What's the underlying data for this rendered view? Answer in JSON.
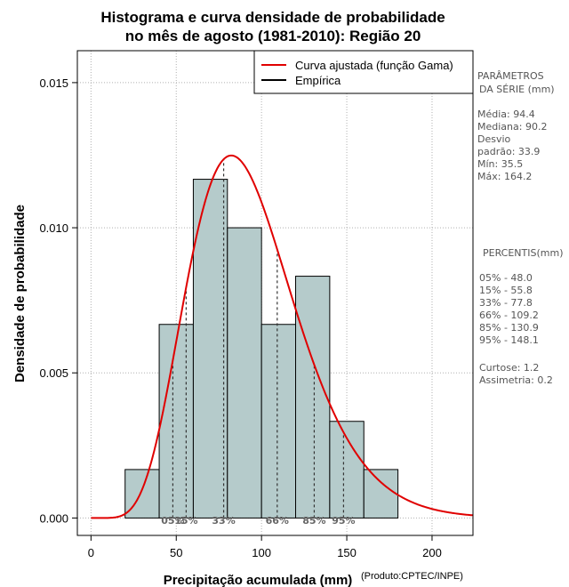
{
  "chart_data": {
    "type": "histogram",
    "title": [
      "Histograma e curva densidade de probabilidade",
      "no mês de agosto (1981-2010): Região 20"
    ],
    "xlabel": "Precipitação acumulada (mm)",
    "ylabel": "Densidade de probabilidade",
    "credit": "(Produto:CPTEC/INPE)",
    "xlim": [
      -8,
      224
    ],
    "ylim": [
      -0.0006,
      0.0161
    ],
    "xticks": [
      0,
      50,
      100,
      150,
      200
    ],
    "xtick_labels": [
      "0",
      "50",
      "100",
      "150",
      "200"
    ],
    "yticks": [
      0.0,
      0.005,
      0.01,
      0.015
    ],
    "ytick_labels": [
      "0.000",
      "0.005",
      "0.010",
      "0.015"
    ],
    "bins": [
      {
        "x0": 20,
        "x1": 40,
        "density": 0.00167
      },
      {
        "x0": 40,
        "x1": 60,
        "density": 0.00667
      },
      {
        "x0": 60,
        "x1": 80,
        "density": 0.01167
      },
      {
        "x0": 80,
        "x1": 100,
        "density": 0.01
      },
      {
        "x0": 100,
        "x1": 120,
        "density": 0.00667
      },
      {
        "x0": 120,
        "x1": 140,
        "density": 0.00833
      },
      {
        "x0": 140,
        "x1": 160,
        "density": 0.00333
      },
      {
        "x0": 160,
        "x1": 180,
        "density": 0.00167
      }
    ],
    "gamma_fit": {
      "shape": 7.8,
      "scale": 12.1,
      "x_max": 224
    },
    "percentiles": [
      {
        "label": "05%",
        "value": 48.0
      },
      {
        "label": "15%",
        "value": 55.8
      },
      {
        "label": "33%",
        "value": 77.8
      },
      {
        "label": "66%",
        "value": 109.2
      },
      {
        "label": "85%",
        "value": 130.9
      },
      {
        "label": "95%",
        "value": 148.1
      }
    ],
    "legend": [
      {
        "label": "Curva ajustada (função Gama)",
        "color": "#e00000"
      },
      {
        "label": "Empírica",
        "color": "#000000"
      }
    ],
    "bar_color": "#b5cbcb",
    "grid": true
  },
  "stats_panel": {
    "params_title": [
      "PARÂMETROS",
      "DA SÉRIE (mm)"
    ],
    "params": [
      "Média:  94.4",
      "Mediana:  90.2",
      "Desvio",
      "padrão:  33.9",
      "Mín:  35.5",
      "Máx:  164.2"
    ],
    "percentis_title": "PERCENTIS(mm)",
    "percentis": [
      "05% -  48.0",
      "15% -  55.8",
      "33% -  77.8",
      "66% -  109.2",
      "85% -  130.9",
      "95% -  148.1"
    ],
    "shape": [
      "Curtose:  1.2",
      "Assimetria:  0.2"
    ]
  }
}
